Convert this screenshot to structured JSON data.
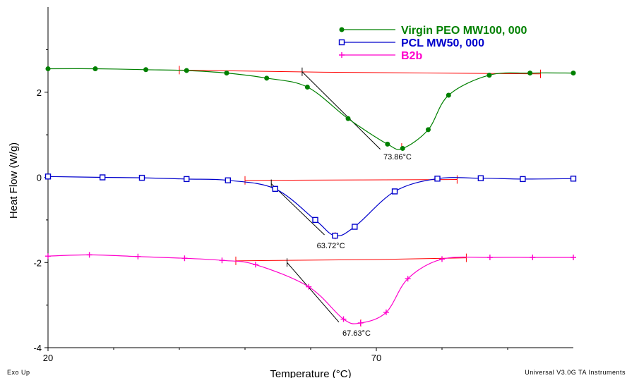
{
  "chart_data": {
    "type": "line",
    "xlabel": "Temperature (°C)",
    "ylabel": "Heat Flow (W/g)",
    "xlim": [
      20,
      100
    ],
    "ylim": [
      -4,
      4
    ],
    "x_ticks": [
      "20",
      "70"
    ],
    "y_ticks": [
      "2",
      "0",
      "-2",
      "-4"
    ],
    "legend_position": "top-right",
    "series": [
      {
        "name": "Virgin PEO MW100, 000",
        "color": "#008000",
        "marker": "filled-circle",
        "points": [
          [
            20,
            2.55
          ],
          [
            27.2,
            2.55
          ],
          [
            34.9,
            2.53
          ],
          [
            41.1,
            2.51
          ],
          [
            47.2,
            2.45
          ],
          [
            53.3,
            2.33
          ],
          [
            59.5,
            2.12
          ],
          [
            65.7,
            1.38
          ],
          [
            71.7,
            0.78
          ],
          [
            74.0,
            0.68
          ],
          [
            77.9,
            1.12
          ],
          [
            81,
            1.93
          ],
          [
            87.2,
            2.4
          ],
          [
            93.4,
            2.45
          ],
          [
            100,
            2.45
          ]
        ],
        "baseline": [
          [
            40,
            2.52
          ],
          [
            62,
            2.47
          ],
          [
            95,
            2.43
          ]
        ],
        "tangent": [
          [
            58.7,
            2.48
          ],
          [
            70.6,
            0.66
          ]
        ],
        "peak_x": 73.86,
        "peak_y": 0.72,
        "peak_label": "73.86°C"
      },
      {
        "name": "PCL MW50, 000",
        "color": "#0000cc",
        "marker": "open-square",
        "points": [
          [
            20,
            0.02
          ],
          [
            28.3,
            0.0
          ],
          [
            34.3,
            -0.01
          ],
          [
            41.1,
            -0.04
          ],
          [
            47.4,
            -0.07
          ],
          [
            54.6,
            -0.27
          ],
          [
            60.7,
            -1.0
          ],
          [
            63.7,
            -1.37
          ],
          [
            66.7,
            -1.16
          ],
          [
            72.8,
            -0.33
          ],
          [
            79.3,
            -0.03
          ],
          [
            85.9,
            -0.02
          ],
          [
            92.3,
            -0.04
          ],
          [
            100,
            -0.03
          ]
        ],
        "baseline": [
          [
            50.0,
            -0.07
          ],
          [
            68.0,
            -0.06
          ],
          [
            82.3,
            -0.05
          ]
        ],
        "tangent": [
          [
            54.0,
            -0.15
          ],
          [
            62.1,
            -1.35
          ]
        ],
        "peak_x": 63.72,
        "peak_y": -1.37,
        "peak_label": "63.72°C"
      },
      {
        "name": "B2b",
        "color": "#ff00cc",
        "marker": "plus",
        "points": [
          [
            20,
            -1.85
          ],
          [
            26.3,
            -1.82
          ],
          [
            33.7,
            -1.86
          ],
          [
            40.8,
            -1.9
          ],
          [
            46.5,
            -1.95
          ],
          [
            51.6,
            -2.05
          ],
          [
            59.7,
            -2.57
          ],
          [
            65.0,
            -3.33
          ],
          [
            67.6,
            -3.42
          ],
          [
            71.5,
            -3.17
          ],
          [
            74.8,
            -2.38
          ],
          [
            80,
            -1.92
          ],
          [
            87.3,
            -1.88
          ],
          [
            93.8,
            -1.88
          ],
          [
            100,
            -1.88
          ]
        ],
        "baseline": [
          [
            48.6,
            -1.96
          ],
          [
            70,
            -1.93
          ],
          [
            83.7,
            -1.89
          ]
        ],
        "tangent": [
          [
            56.4,
            -2.0
          ],
          [
            64.3,
            -3.4
          ]
        ],
        "peak_x": 67.63,
        "peak_y": -3.42,
        "peak_label": "67.63°C"
      }
    ]
  },
  "footer": {
    "left": "Exo Up",
    "right": "Universal V3.0G TA Instruments"
  }
}
